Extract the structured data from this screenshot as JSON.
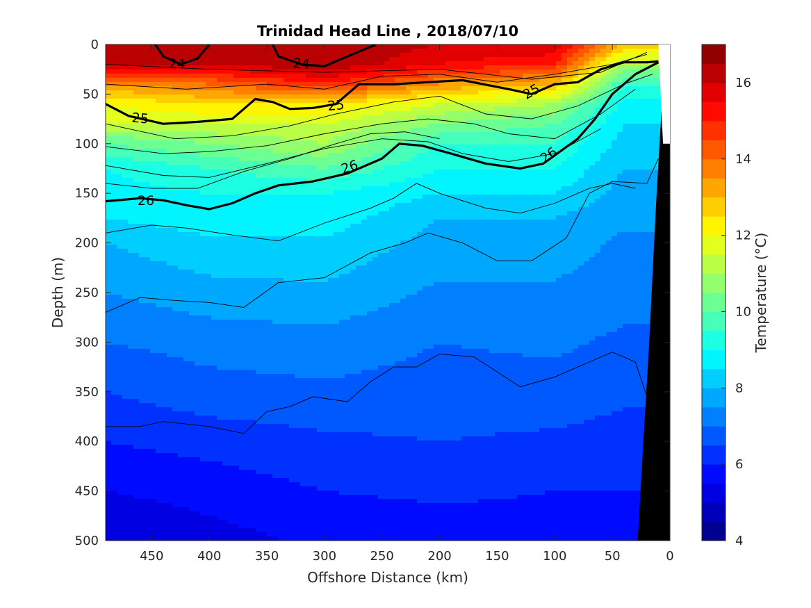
{
  "chart_data": {
    "type": "heatmap",
    "title": "Trinidad Head Line , 2018/07/10",
    "xlabel": "Offshore Distance (km)",
    "ylabel": "Depth (m)",
    "x_reversed": true,
    "y_reversed": true,
    "xlim": [
      0,
      490
    ],
    "ylim": [
      0,
      500
    ],
    "x_ticks": [
      450,
      400,
      350,
      300,
      250,
      200,
      150,
      100,
      50,
      0
    ],
    "y_ticks": [
      0,
      50,
      100,
      150,
      200,
      250,
      300,
      350,
      400,
      450,
      500
    ],
    "colorbar": {
      "label": "Temperature (°C)",
      "range": [
        4,
        17
      ],
      "ticks": [
        4,
        6,
        8,
        10,
        12,
        14,
        16
      ],
      "colormap": "jet"
    },
    "temperature_profile": {
      "distance_km": [
        490,
        400,
        300,
        200,
        100,
        40
      ],
      "depth_m": [
        0,
        20,
        40,
        60,
        80,
        100,
        125,
        150,
        175,
        200,
        250,
        300,
        350,
        400,
        450,
        500
      ],
      "temperature_c": [
        [
          16.5,
          16.0,
          13.5,
          12.0,
          11.5,
          10.0,
          9.0,
          8.8,
          8.5,
          8.0,
          7.5,
          7.0,
          6.5,
          6.0,
          5.5,
          5.0
        ],
        [
          16.5,
          16.0,
          14.0,
          12.5,
          11.5,
          10.5,
          9.5,
          9.0,
          8.8,
          8.4,
          7.8,
          7.2,
          6.8,
          6.2,
          5.7,
          5.3
        ],
        [
          16.5,
          16.5,
          15.0,
          12.5,
          11.5,
          11.0,
          10.0,
          9.0,
          8.8,
          8.4,
          7.9,
          7.3,
          6.9,
          6.4,
          6.0,
          5.6
        ],
        [
          16.0,
          15.5,
          13.5,
          11.5,
          10.5,
          9.5,
          9.0,
          8.5,
          8.0,
          7.8,
          7.4,
          7.0,
          6.8,
          6.5,
          6.1,
          5.7
        ],
        [
          16.0,
          15.0,
          13.0,
          11.0,
          10.0,
          9.5,
          9.0,
          8.5,
          8.0,
          7.8,
          7.4,
          7.1,
          6.8,
          6.4,
          6.0,
          5.8
        ],
        [
          13.0,
          11.0,
          9.5,
          8.8,
          8.5,
          8.3,
          8.0,
          7.8,
          7.6,
          7.4,
          7.2,
          6.9,
          6.6,
          6.3,
          6.0,
          5.8
        ]
      ]
    },
    "density_contours": [
      {
        "label": "24",
        "bold": true,
        "segments": [
          [
            [
              447,
              0
            ],
            [
              440,
              12
            ],
            [
              425,
              20
            ],
            [
              410,
              14
            ],
            [
              400,
              0
            ]
          ],
          [
            [
              345,
              0
            ],
            [
              340,
              12
            ],
            [
              320,
              20
            ],
            [
              300,
              22
            ],
            [
              280,
              12
            ],
            [
              255,
              0
            ]
          ]
        ]
      },
      {
        "label": "25",
        "bold": true,
        "segments": [
          [
            [
              490,
              60
            ],
            [
              470,
              72
            ],
            [
              440,
              80
            ],
            [
              410,
              78
            ],
            [
              380,
              75
            ],
            [
              360,
              55
            ],
            [
              345,
              58
            ],
            [
              330,
              65
            ],
            [
              310,
              64
            ],
            [
              290,
              60
            ],
            [
              270,
              40
            ],
            [
              240,
              40
            ],
            [
              210,
              38
            ],
            [
              180,
              36
            ],
            [
              140,
              45
            ],
            [
              120,
              50
            ],
            [
              100,
              40
            ],
            [
              80,
              38
            ],
            [
              60,
              25
            ],
            [
              40,
              18
            ],
            [
              20,
              18
            ],
            [
              10,
              17
            ]
          ]
        ]
      },
      {
        "label": "26",
        "bold": true,
        "segments": [
          [
            [
              490,
              158
            ],
            [
              460,
              155
            ],
            [
              440,
              157
            ],
            [
              420,
              162
            ],
            [
              400,
              166
            ],
            [
              380,
              160
            ],
            [
              360,
              150
            ],
            [
              340,
              142
            ],
            [
              310,
              138
            ],
            [
              280,
              130
            ],
            [
              250,
              115
            ],
            [
              235,
              100
            ],
            [
              215,
              102
            ],
            [
              190,
              110
            ],
            [
              160,
              120
            ],
            [
              130,
              125
            ],
            [
              110,
              120
            ],
            [
              80,
              95
            ],
            [
              65,
              75
            ],
            [
              50,
              50
            ],
            [
              30,
              30
            ],
            [
              10,
              18
            ]
          ]
        ]
      }
    ],
    "contour_label_positions": [
      {
        "text": "24",
        "x": 428,
        "y": 20,
        "angle": 0
      },
      {
        "text": "24",
        "x": 320,
        "y": 20,
        "angle": 5
      },
      {
        "text": "25",
        "x": 460,
        "y": 75,
        "angle": 5
      },
      {
        "text": "25",
        "x": 290,
        "y": 62,
        "angle": -5
      },
      {
        "text": "25",
        "x": 120,
        "y": 48,
        "angle": -30
      },
      {
        "text": "26",
        "x": 455,
        "y": 158,
        "angle": 0
      },
      {
        "text": "26",
        "x": 278,
        "y": 124,
        "angle": -18
      },
      {
        "text": "26",
        "x": 105,
        "y": 112,
        "angle": -35
      }
    ],
    "thin_contours": [
      [
        [
          490,
          20
        ],
        [
          400,
          25
        ],
        [
          300,
          28
        ],
        [
          200,
          25
        ],
        [
          120,
          35
        ],
        [
          60,
          28
        ],
        [
          20,
          8
        ]
      ],
      [
        [
          490,
          40
        ],
        [
          420,
          45
        ],
        [
          350,
          40
        ],
        [
          300,
          45
        ],
        [
          250,
          32
        ],
        [
          200,
          30
        ],
        [
          150,
          38
        ],
        [
          100,
          30
        ],
        [
          50,
          20
        ],
        [
          20,
          10
        ]
      ],
      [
        [
          490,
          80
        ],
        [
          430,
          95
        ],
        [
          380,
          92
        ],
        [
          330,
          82
        ],
        [
          290,
          70
        ],
        [
          240,
          58
        ],
        [
          200,
          52
        ],
        [
          160,
          70
        ],
        [
          120,
          75
        ],
        [
          80,
          62
        ],
        [
          40,
          40
        ],
        [
          15,
          30
        ]
      ],
      [
        [
          490,
          103
        ],
        [
          440,
          110
        ],
        [
          400,
          108
        ],
        [
          350,
          102
        ],
        [
          300,
          90
        ],
        [
          250,
          80
        ],
        [
          210,
          75
        ],
        [
          170,
          80
        ],
        [
          140,
          90
        ],
        [
          100,
          95
        ],
        [
          60,
          70
        ],
        [
          30,
          45
        ]
      ],
      [
        [
          490,
          122
        ],
        [
          440,
          132
        ],
        [
          400,
          134
        ],
        [
          350,
          120
        ],
        [
          300,
          105
        ],
        [
          250,
          95
        ],
        [
          210,
          98
        ],
        [
          180,
          110
        ],
        [
          140,
          118
        ],
        [
          100,
          110
        ],
        [
          60,
          85
        ]
      ],
      [
        [
          490,
          140
        ],
        [
          450,
          145
        ],
        [
          410,
          145
        ],
        [
          370,
          128
        ],
        [
          330,
          115
        ],
        [
          290,
          100
        ],
        [
          260,
          90
        ],
        [
          230,
          88
        ],
        [
          200,
          95
        ]
      ],
      [
        [
          490,
          190
        ],
        [
          450,
          182
        ],
        [
          420,
          185
        ],
        [
          380,
          192
        ],
        [
          340,
          198
        ],
        [
          300,
          180
        ],
        [
          260,
          165
        ],
        [
          240,
          155
        ],
        [
          220,
          140
        ],
        [
          200,
          150
        ],
        [
          160,
          165
        ],
        [
          130,
          170
        ],
        [
          100,
          160
        ],
        [
          70,
          145
        ],
        [
          50,
          140
        ],
        [
          30,
          145
        ]
      ],
      [
        [
          490,
          270
        ],
        [
          460,
          255
        ],
        [
          430,
          258
        ],
        [
          400,
          260
        ],
        [
          370,
          265
        ],
        [
          340,
          240
        ],
        [
          300,
          235
        ],
        [
          260,
          210
        ],
        [
          230,
          200
        ],
        [
          210,
          190
        ],
        [
          180,
          200
        ],
        [
          150,
          218
        ],
        [
          120,
          218
        ],
        [
          90,
          195
        ],
        [
          70,
          150
        ],
        [
          50,
          138
        ],
        [
          20,
          140
        ],
        [
          10,
          115
        ]
      ],
      [
        [
          490,
          385
        ],
        [
          460,
          385
        ],
        [
          440,
          380
        ],
        [
          400,
          385
        ],
        [
          370,
          392
        ],
        [
          350,
          370
        ],
        [
          330,
          365
        ],
        [
          310,
          355
        ],
        [
          280,
          360
        ],
        [
          260,
          340
        ],
        [
          240,
          325
        ],
        [
          220,
          325
        ],
        [
          200,
          312
        ],
        [
          170,
          315
        ],
        [
          130,
          345
        ],
        [
          100,
          335
        ],
        [
          70,
          320
        ],
        [
          50,
          310
        ],
        [
          30,
          320
        ],
        [
          20,
          355
        ]
      ]
    ]
  }
}
